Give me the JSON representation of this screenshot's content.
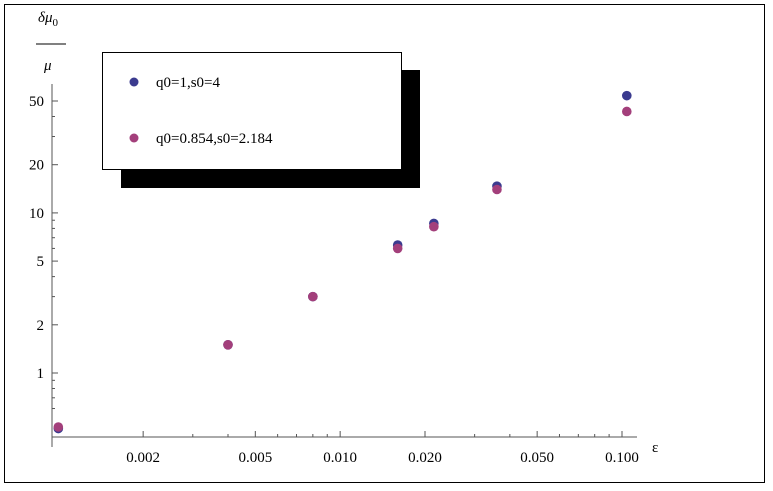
{
  "chart_data": {
    "type": "scatter",
    "xscale": "log",
    "yscale": "log",
    "xlabel": "ε",
    "ylabel": {
      "numerator": "δμ",
      "subscript": "0",
      "denominator": "μ"
    },
    "xlim": [
      0.001,
      0.12
    ],
    "ylim": [
      0.45,
      90
    ],
    "xticks": [
      {
        "value": 0.002,
        "label": "0.002"
      },
      {
        "value": 0.005,
        "label": "0.005"
      },
      {
        "value": 0.01,
        "label": "0.010"
      },
      {
        "value": 0.02,
        "label": "0.020"
      },
      {
        "value": 0.05,
        "label": "0.050"
      },
      {
        "value": 0.1,
        "label": "0.100"
      }
    ],
    "yticks": [
      {
        "value": 1,
        "label": "1"
      },
      {
        "value": 2,
        "label": "2"
      },
      {
        "value": 5,
        "label": "5"
      },
      {
        "value": 10,
        "label": "10"
      },
      {
        "value": 20,
        "label": "20"
      },
      {
        "value": 50,
        "label": "50"
      }
    ],
    "grid": false,
    "legend_position": "top-left",
    "series": [
      {
        "name": "q0=1,s0=4",
        "color": "#3b3b8f",
        "points": [
          {
            "x": 0.001,
            "y": 0.45
          },
          {
            "x": 0.004,
            "y": 1.5
          },
          {
            "x": 0.008,
            "y": 3.0
          },
          {
            "x": 0.016,
            "y": 6.3
          },
          {
            "x": 0.0215,
            "y": 8.6
          },
          {
            "x": 0.036,
            "y": 14.7
          },
          {
            "x": 0.104,
            "y": 54
          }
        ]
      },
      {
        "name": "q0=0.854,s0=2.184",
        "color": "#a33f7b",
        "points": [
          {
            "x": 0.001,
            "y": 0.46
          },
          {
            "x": 0.004,
            "y": 1.5
          },
          {
            "x": 0.008,
            "y": 3.0
          },
          {
            "x": 0.016,
            "y": 6.0
          },
          {
            "x": 0.0215,
            "y": 8.2
          },
          {
            "x": 0.036,
            "y": 14.0
          },
          {
            "x": 0.104,
            "y": 43
          }
        ]
      }
    ]
  }
}
